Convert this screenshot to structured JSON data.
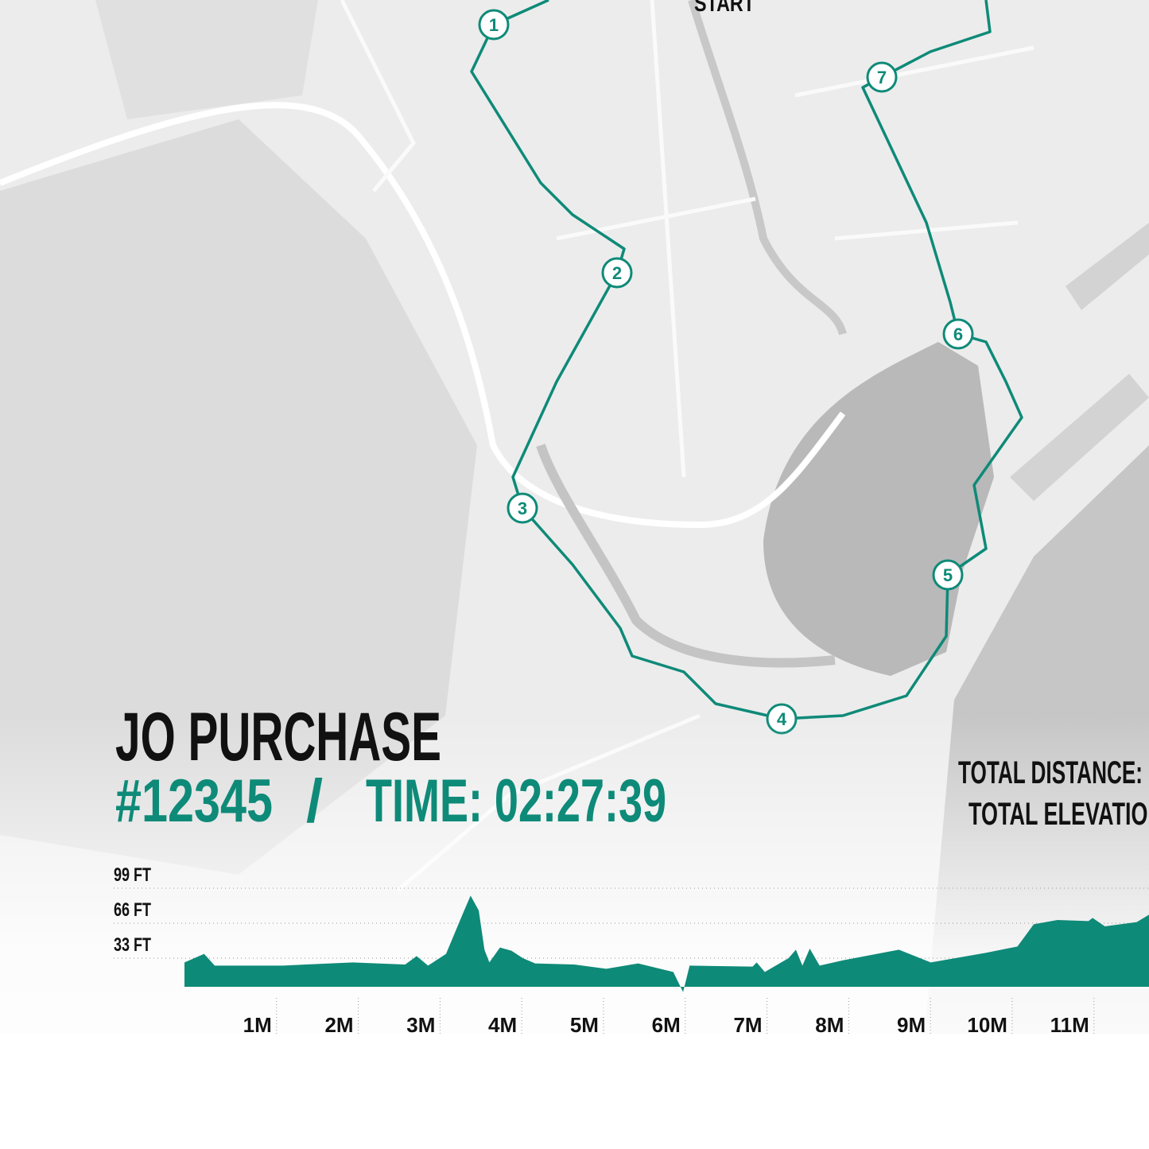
{
  "map": {
    "start": "START",
    "markers": [
      "1",
      "2",
      "3",
      "4",
      "5",
      "6",
      "7"
    ]
  },
  "header": {
    "name": "JO PURCHASE",
    "bib": "#12345",
    "separator": "/",
    "time": "TIME: 02:27:39"
  },
  "stats": {
    "distance": "TOTAL DISTANCE:",
    "elevation": "TOTAL ELEVATION"
  },
  "chart_data": {
    "type": "area",
    "color": "#0e8a78",
    "x": [
      0,
      0.24,
      0.37,
      1.2,
      2.06,
      2.7,
      2.84,
      2.98,
      3.2,
      3.4,
      3.5,
      3.6,
      3.67,
      3.73,
      3.86,
      4.0,
      4.14,
      4.29,
      4.77,
      5.16,
      5.55,
      5.98,
      6.1,
      6.18,
      6.95,
      7.0,
      7.1,
      7.39,
      7.48,
      7.56,
      7.65,
      7.77,
      8.06,
      8.74,
      9.13,
      9.8,
      10.19,
      10.39,
      10.68,
      11.06,
      11.11,
      11.26,
      11.65,
      11.8
    ],
    "values": [
      29,
      37,
      26,
      26,
      29,
      27,
      35,
      26,
      37,
      74,
      92,
      78,
      41,
      29,
      43,
      40,
      33,
      28,
      27,
      23,
      28,
      20,
      1,
      26,
      25,
      29,
      20,
      33,
      41,
      26,
      42,
      26,
      31,
      41,
      29,
      38,
      44,
      65,
      69,
      68,
      71,
      63,
      67,
      74
    ],
    "xlim": [
      0,
      11.8
    ],
    "ylim": [
      0,
      99
    ],
    "yticks": [
      {
        "value": 33,
        "label": "33 FT"
      },
      {
        "value": 66,
        "label": "66 FT"
      },
      {
        "value": 99,
        "label": "99 FT"
      }
    ],
    "xticks": [
      {
        "value": 1,
        "label": "1M"
      },
      {
        "value": 2,
        "label": "2M"
      },
      {
        "value": 3,
        "label": "3M"
      },
      {
        "value": 4,
        "label": "4M"
      },
      {
        "value": 5,
        "label": "5M"
      },
      {
        "value": 6,
        "label": "6M"
      },
      {
        "value": 7,
        "label": "7M"
      },
      {
        "value": 8,
        "label": "8M"
      },
      {
        "value": 9,
        "label": "9M"
      },
      {
        "value": 10,
        "label": "10M"
      },
      {
        "value": 11,
        "label": "11M"
      }
    ],
    "grid": true
  }
}
